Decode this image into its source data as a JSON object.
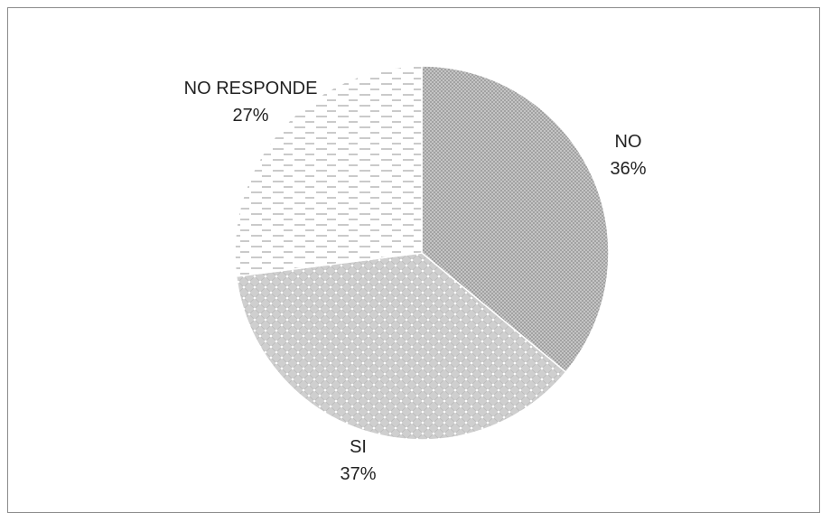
{
  "chart_data": {
    "type": "pie",
    "title": "",
    "legend": "none",
    "slices": [
      {
        "name": "NO",
        "value": 36,
        "label": "36%",
        "pattern": "dots-dense",
        "color": "#b8b8b8"
      },
      {
        "name": "SI",
        "value": 37,
        "label": "37%",
        "pattern": "cross-dots",
        "color": "#d2d2d2"
      },
      {
        "name": "NO RESPONDE",
        "value": 27,
        "label": "27%",
        "pattern": "dashes",
        "color": "#ffffff"
      }
    ]
  }
}
